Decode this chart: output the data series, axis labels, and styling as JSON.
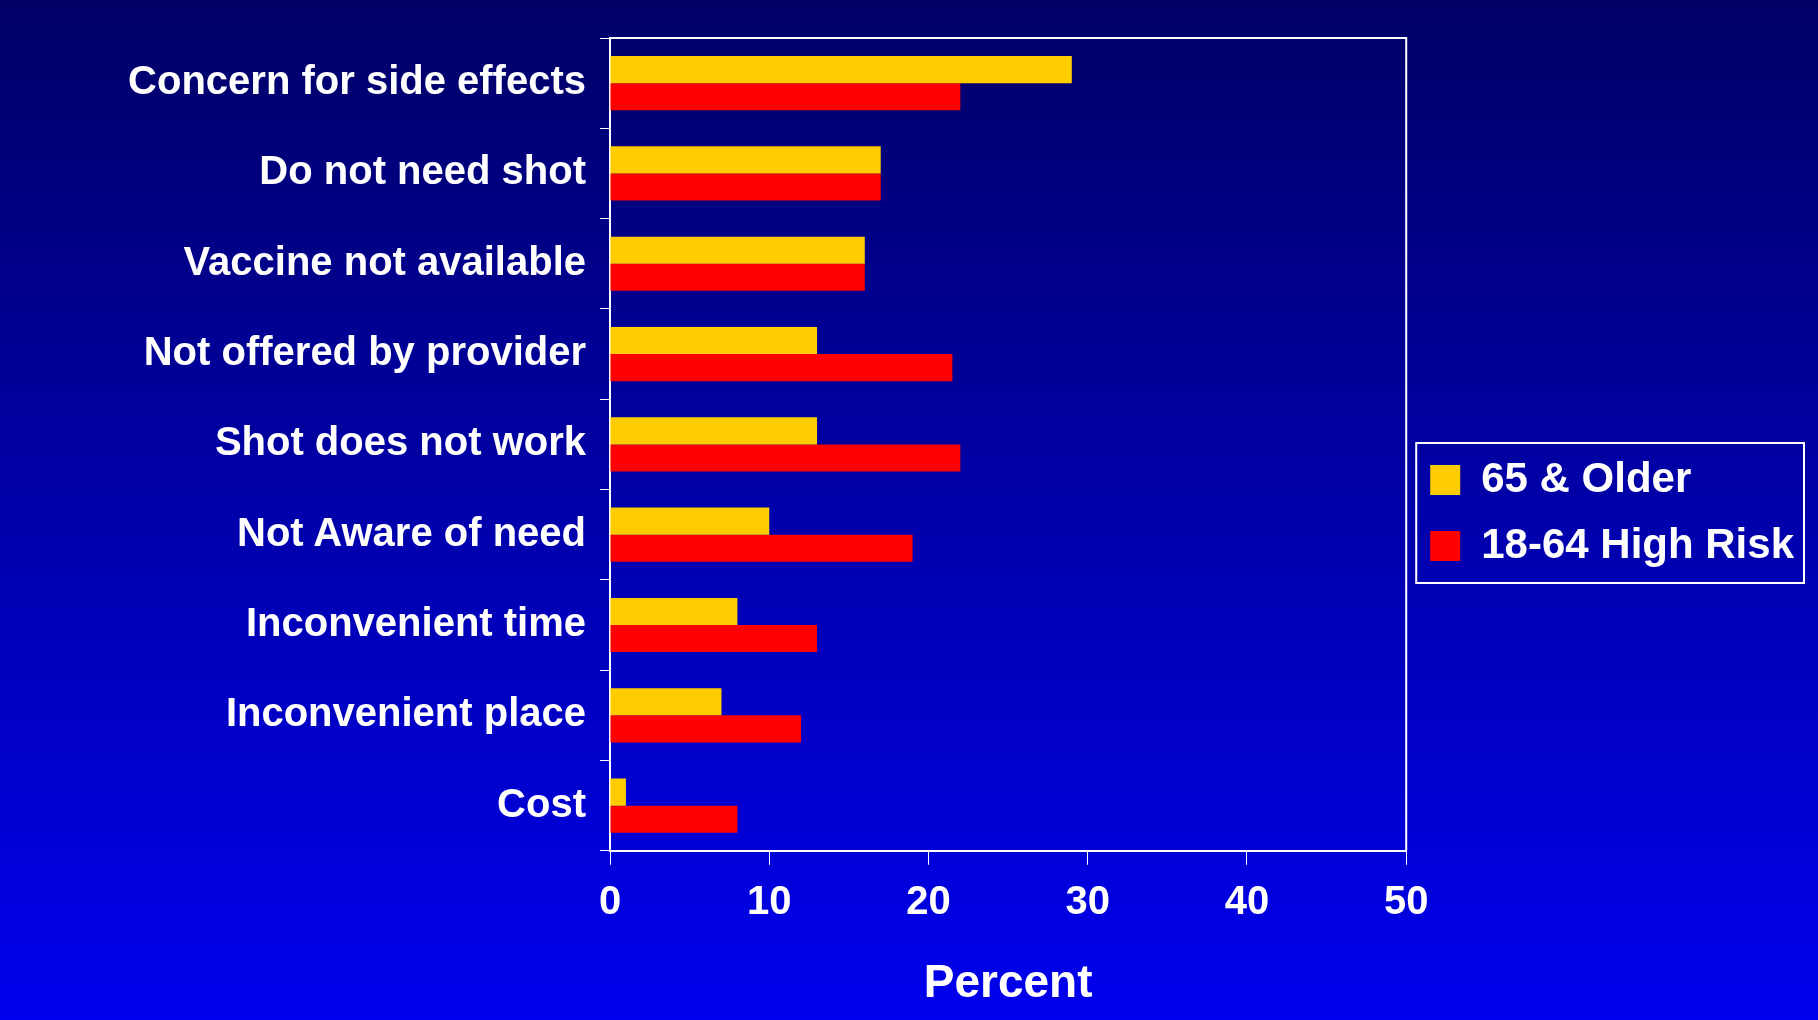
{
  "chart_data": {
    "type": "bar",
    "orientation": "horizontal",
    "xlabel": "Percent",
    "categories": [
      "Concern for side effects",
      "Do not need shot",
      "Vaccine not available",
      "Not offered by provider",
      "Shot does not work",
      "Not Aware of need",
      "Inconvenient time",
      "Inconvenient place",
      "Cost"
    ],
    "series": [
      {
        "name": "65 & Older",
        "color": "#ffcc00",
        "values": [
          29,
          17,
          16,
          13,
          13,
          10,
          8,
          7,
          1
        ]
      },
      {
        "name": "18-64 High Risk",
        "color": "#ff0000",
        "values": [
          22,
          17,
          16,
          21.5,
          22,
          19,
          13,
          12,
          8
        ]
      }
    ],
    "xlim": [
      0,
      50
    ],
    "xticks": [
      0,
      10,
      20,
      30,
      40,
      50
    ],
    "grid": false,
    "legend": "right"
  }
}
